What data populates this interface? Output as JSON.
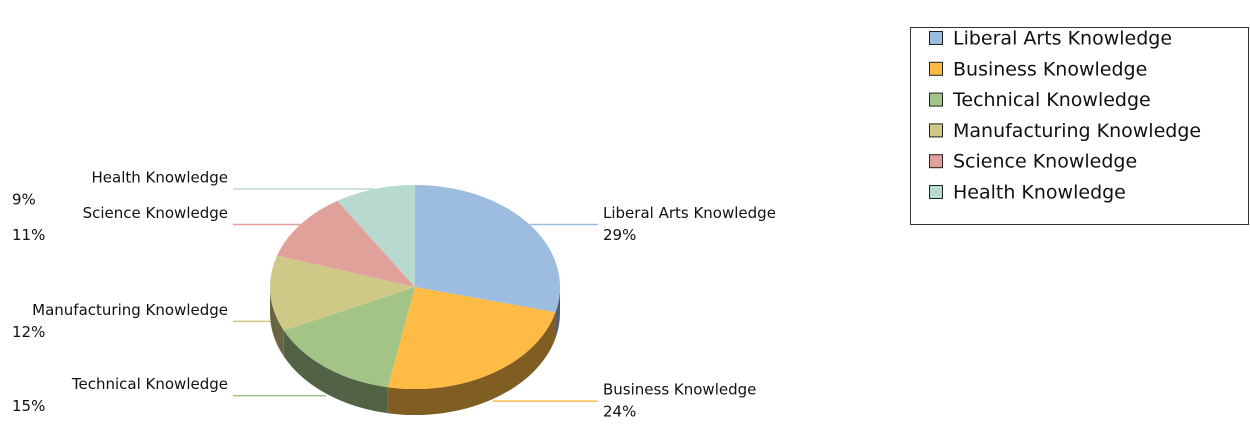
{
  "chart_data": {
    "type": "pie",
    "categories": [
      "Liberal Arts Knowledge",
      "Business Knowledge",
      "Technical Knowledge",
      "Manufacturing Knowledge",
      "Science Knowledge",
      "Health Knowledge"
    ],
    "values": [
      29,
      24,
      15,
      12,
      11,
      9
    ],
    "value_labels": [
      "29%",
      "24%",
      "15%",
      "12%",
      "11%",
      "9%"
    ],
    "colors": [
      "#9dbde0",
      "#ffbb44",
      "#a2c587",
      "#cfc988",
      "#e0a19b",
      "#b8d9cf"
    ],
    "legend": "top-right"
  }
}
